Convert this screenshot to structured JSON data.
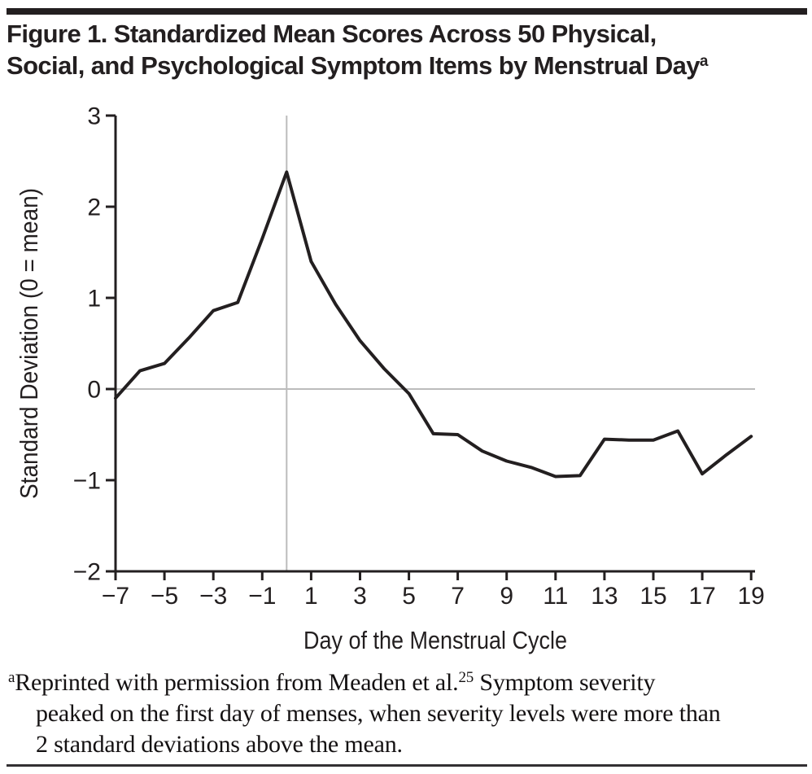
{
  "figure": {
    "title": {
      "line1": "Figure 1. Standardized Mean Scores Across 50 Physical,",
      "line2": "Social, and Psychological Symptom Items by Menstrual Day",
      "superscript": "a"
    },
    "footnote": {
      "marker": "a",
      "line1_text": "Reprinted with permission from Meaden et al.",
      "citation": "25",
      "line1_tail": " Symptom severity",
      "line2": "peaked on the first day of menses, when severity levels were more than",
      "line3": "2 standard deviations above the mean."
    },
    "colors": {
      "ink": "#231f20",
      "grid": "#bcbcbc"
    }
  },
  "chart_data": {
    "type": "line",
    "title": "",
    "xlabel": "Day of the Menstrual Cycle",
    "ylabel": "Standard Deviation (0 = mean)",
    "x": [
      -7,
      -6,
      -5,
      -4,
      -3,
      -2,
      -1,
      0,
      1,
      2,
      3,
      4,
      5,
      6,
      7,
      8,
      9,
      10,
      11,
      12,
      13,
      14,
      15,
      16,
      17,
      18,
      19
    ],
    "y": [
      -0.1,
      0.2,
      0.28,
      0.56,
      0.86,
      0.95,
      1.65,
      2.38,
      1.4,
      0.93,
      0.53,
      0.22,
      -0.05,
      -0.49,
      -0.5,
      -0.68,
      -0.79,
      -0.86,
      -0.96,
      -0.95,
      -0.55,
      -0.56,
      -0.56,
      -0.46,
      -0.93,
      -0.72,
      -0.52
    ],
    "series_name": "Standardized mean symptom score",
    "xlim": [
      -7,
      19.16
    ],
    "ylim": [
      -2,
      3
    ],
    "x_tick_values": [
      -7,
      -5,
      -3,
      -1,
      1,
      3,
      5,
      7,
      9,
      11,
      13,
      15,
      17,
      19
    ],
    "x_tick_labels": [
      "−7",
      "−5",
      "−3",
      "−1",
      "1",
      "3",
      "5",
      "7",
      "9",
      "11",
      "13",
      "15",
      "17",
      "19"
    ],
    "y_tick_values": [
      3,
      2,
      1,
      0,
      -1,
      -2
    ],
    "y_tick_labels": [
      "3",
      "2",
      "1",
      "0",
      "−1",
      "−2"
    ],
    "reference_lines": {
      "vertical_at_x": 0,
      "horizontal_at_y": 0
    },
    "grid": "reference lines only",
    "legend": "none",
    "line_color": "#231f20",
    "grid_color": "#bcbcbc"
  }
}
